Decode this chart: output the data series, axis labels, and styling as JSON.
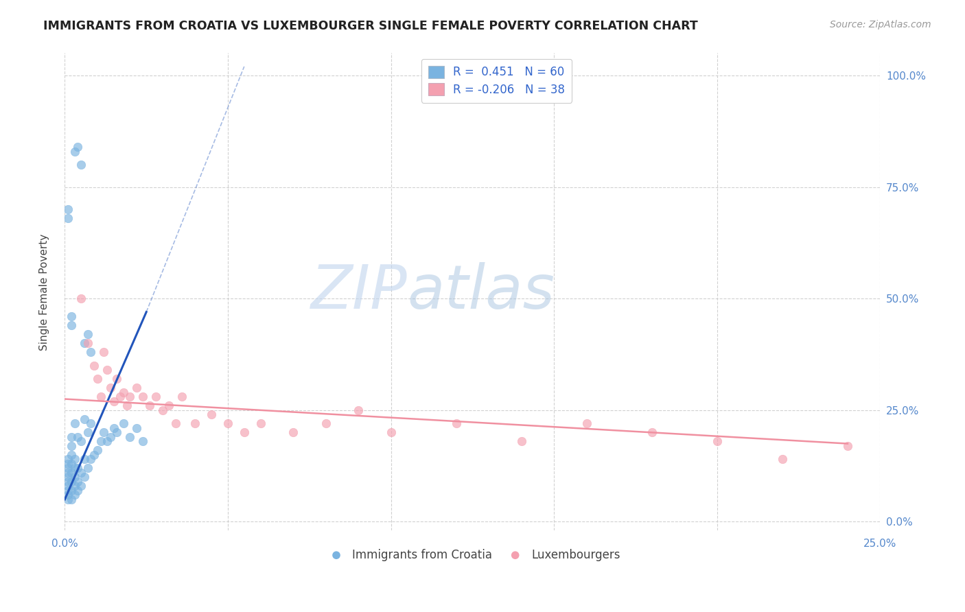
{
  "title": "IMMIGRANTS FROM CROATIA VS LUXEMBOURGER SINGLE FEMALE POVERTY CORRELATION CHART",
  "source": "Source: ZipAtlas.com",
  "ylabel": "Single Female Poverty",
  "yticks_right": [
    "0.0%",
    "25.0%",
    "50.0%",
    "75.0%",
    "100.0%"
  ],
  "ytick_vals": [
    0.0,
    0.25,
    0.5,
    0.75,
    1.0
  ],
  "xlim": [
    0.0,
    0.25
  ],
  "ylim": [
    -0.02,
    1.05
  ],
  "legend_label1": "Immigrants from Croatia",
  "legend_label2": "Luxembourgers",
  "croatia_color": "#7ab3e0",
  "luxembourg_color": "#f4a0b0",
  "trendline_croatia_color": "#2255bb",
  "trendline_luxembourg_color": "#f090a0",
  "background_color": "#ffffff",
  "grid_color": "#cccccc",
  "watermark_zip": "ZIP",
  "watermark_atlas": "atlas",
  "croatia_x": [
    0.001,
    0.001,
    0.001,
    0.001,
    0.001,
    0.001,
    0.001,
    0.001,
    0.001,
    0.001,
    0.002,
    0.002,
    0.002,
    0.002,
    0.002,
    0.002,
    0.002,
    0.002,
    0.003,
    0.003,
    0.003,
    0.003,
    0.003,
    0.003,
    0.004,
    0.004,
    0.004,
    0.004,
    0.005,
    0.005,
    0.005,
    0.006,
    0.006,
    0.006,
    0.007,
    0.007,
    0.008,
    0.008,
    0.009,
    0.01,
    0.011,
    0.012,
    0.013,
    0.014,
    0.015,
    0.016,
    0.018,
    0.02,
    0.022,
    0.024,
    0.003,
    0.004,
    0.005,
    0.002,
    0.002,
    0.001,
    0.001,
    0.006,
    0.007,
    0.008
  ],
  "croatia_y": [
    0.05,
    0.06,
    0.07,
    0.08,
    0.09,
    0.1,
    0.11,
    0.12,
    0.13,
    0.14,
    0.05,
    0.07,
    0.09,
    0.11,
    0.13,
    0.15,
    0.17,
    0.19,
    0.06,
    0.08,
    0.1,
    0.12,
    0.14,
    0.22,
    0.07,
    0.09,
    0.12,
    0.19,
    0.08,
    0.11,
    0.18,
    0.1,
    0.14,
    0.23,
    0.12,
    0.2,
    0.14,
    0.22,
    0.15,
    0.16,
    0.18,
    0.2,
    0.18,
    0.19,
    0.21,
    0.2,
    0.22,
    0.19,
    0.21,
    0.18,
    0.83,
    0.84,
    0.8,
    0.46,
    0.44,
    0.7,
    0.68,
    0.4,
    0.42,
    0.38
  ],
  "luxembourg_x": [
    0.005,
    0.007,
    0.009,
    0.01,
    0.011,
    0.012,
    0.013,
    0.014,
    0.015,
    0.016,
    0.017,
    0.018,
    0.019,
    0.02,
    0.022,
    0.024,
    0.026,
    0.028,
    0.03,
    0.032,
    0.034,
    0.036,
    0.04,
    0.045,
    0.05,
    0.055,
    0.06,
    0.07,
    0.08,
    0.09,
    0.1,
    0.12,
    0.14,
    0.16,
    0.18,
    0.2,
    0.22,
    0.24
  ],
  "luxembourg_y": [
    0.5,
    0.4,
    0.35,
    0.32,
    0.28,
    0.38,
    0.34,
    0.3,
    0.27,
    0.32,
    0.28,
    0.29,
    0.26,
    0.28,
    0.3,
    0.28,
    0.26,
    0.28,
    0.25,
    0.26,
    0.22,
    0.28,
    0.22,
    0.24,
    0.22,
    0.2,
    0.22,
    0.2,
    0.22,
    0.25,
    0.2,
    0.22,
    0.18,
    0.22,
    0.2,
    0.18,
    0.14,
    0.17
  ],
  "trendline_croatia_x0": 0.0,
  "trendline_croatia_y0": 0.05,
  "trendline_croatia_x1": 0.025,
  "trendline_croatia_y1": 0.47,
  "trendline_croatia_dash_x0": 0.025,
  "trendline_croatia_dash_y0": 0.47,
  "trendline_croatia_dash_x1": 0.055,
  "trendline_croatia_dash_y1": 1.02,
  "trendline_luxembourg_x0": 0.0,
  "trendline_luxembourg_y0": 0.275,
  "trendline_luxembourg_x1": 0.24,
  "trendline_luxembourg_y1": 0.175
}
